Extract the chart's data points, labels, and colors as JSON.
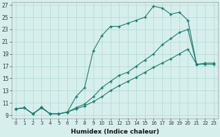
{
  "xlabel": "Humidex (Indice chaleur)",
  "background_color": "#d6efec",
  "grid_color": "#b0d8d2",
  "line_color": "#1a7a6e",
  "xlim": [
    -0.5,
    23.5
  ],
  "ylim": [
    8.5,
    27.5
  ],
  "xticks": [
    0,
    1,
    2,
    3,
    4,
    5,
    6,
    7,
    8,
    9,
    10,
    11,
    12,
    13,
    14,
    15,
    16,
    17,
    18,
    19,
    20,
    21,
    22,
    23
  ],
  "yticks": [
    9,
    11,
    13,
    15,
    17,
    19,
    21,
    23,
    25,
    27
  ],
  "line_top_x": [
    0,
    1,
    2,
    3,
    4,
    5,
    6,
    7,
    8,
    9,
    10,
    11,
    12,
    13,
    14,
    15,
    16,
    17,
    18,
    19,
    20,
    21
  ],
  "line_top_y": [
    10,
    10.2,
    9.2,
    10.3,
    9.2,
    9.2,
    9.5,
    12.0,
    13.5,
    19.5,
    22.0,
    23.5,
    23.5,
    24.0,
    24.5,
    25.0,
    26.8,
    26.5,
    25.5,
    25.8,
    24.5,
    17.3
  ],
  "line_mid_x": [
    0,
    1,
    2,
    3,
    4,
    5,
    6,
    7,
    8,
    9,
    10,
    11,
    12,
    13,
    14,
    15,
    16,
    17,
    18,
    19,
    20,
    21,
    22,
    23
  ],
  "line_mid_y": [
    10,
    10.2,
    9.2,
    10.2,
    9.2,
    9.2,
    9.5,
    10.2,
    10.8,
    12.0,
    13.5,
    14.5,
    15.5,
    16.0,
    17.0,
    18.0,
    19.0,
    20.5,
    21.5,
    22.5,
    23.0,
    17.3,
    17.3,
    17.3
  ],
  "line_bot_x": [
    0,
    1,
    2,
    3,
    4,
    5,
    6,
    7,
    8,
    9,
    10,
    11,
    12,
    13,
    14,
    15,
    16,
    17,
    18,
    19,
    20,
    21,
    22,
    23
  ],
  "line_bot_y": [
    10,
    10.2,
    9.2,
    10.2,
    9.2,
    9.2,
    9.5,
    10.0,
    10.5,
    11.2,
    12.0,
    13.0,
    13.8,
    14.5,
    15.2,
    16.0,
    16.8,
    17.5,
    18.2,
    19.0,
    19.8,
    17.3,
    17.5,
    17.5
  ]
}
